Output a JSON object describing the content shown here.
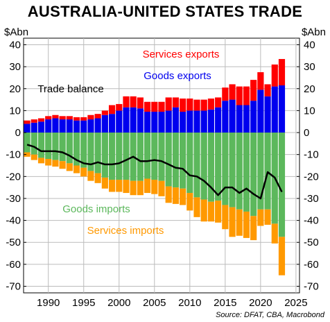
{
  "title": "AUSTRALIA-UNITED STATES TRADE",
  "unit_left": "$Abn",
  "unit_right": "$Abn",
  "source": "Source: DFAT, CBA, Macrobond",
  "colors": {
    "services_exports": "#ff0000",
    "goods_exports": "#0000ee",
    "goods_imports": "#5cb85c",
    "services_imports": "#ff9900",
    "trade_balance": "#000000",
    "grid": "#bbbbbb"
  },
  "chart_data": {
    "type": "bar",
    "stacked": true,
    "x": [
      1987,
      1988,
      1989,
      1990,
      1991,
      1992,
      1993,
      1994,
      1995,
      1996,
      1997,
      1998,
      1999,
      2000,
      2001,
      2002,
      2003,
      2004,
      2005,
      2006,
      2007,
      2008,
      2009,
      2010,
      2011,
      2012,
      2013,
      2014,
      2015,
      2016,
      2017,
      2018,
      2019,
      2020,
      2021,
      2022,
      2023
    ],
    "xticks": [
      1990,
      1995,
      2000,
      2005,
      2010,
      2015,
      2020,
      2025
    ],
    "xlim": [
      1986.5,
      2025.5
    ],
    "ylim": [
      -73,
      43
    ],
    "yticks": [
      40,
      30,
      20,
      10,
      0,
      -10,
      -20,
      -30,
      -40,
      -50,
      -60,
      -70
    ],
    "grid": true,
    "series": [
      {
        "name": "Goods exports",
        "values": [
          4,
          4.5,
          5,
          6,
          6.5,
          6,
          6,
          5.5,
          5.5,
          6,
          6.5,
          8,
          8.5,
          10,
          11.5,
          11.5,
          11,
          9.5,
          9.5,
          9.5,
          10,
          11.5,
          9.5,
          10,
          10,
          10,
          10.5,
          11.5,
          14.5,
          15,
          12.5,
          12.5,
          14.5,
          19.5,
          16.5,
          21,
          21.5
        ]
      },
      {
        "name": "Services exports",
        "values": [
          1.5,
          1.5,
          1.5,
          1.5,
          1.5,
          1.5,
          1.5,
          1.5,
          1.5,
          2,
          2,
          2,
          4,
          3,
          5,
          5,
          5,
          4.5,
          4.5,
          4.5,
          6,
          4.5,
          6,
          5.5,
          5,
          5,
          5,
          4.5,
          6,
          7,
          8.5,
          8.5,
          9.5,
          8,
          5.5,
          10,
          12
        ]
      },
      {
        "name": "Goods imports",
        "values": [
          -9,
          -10,
          -11.5,
          -12,
          -12.5,
          -13,
          -14,
          -15,
          -16,
          -17.5,
          -18.5,
          -20.5,
          -21.5,
          -21.5,
          -21.5,
          -22,
          -22,
          -21,
          -21.5,
          -22,
          -24.5,
          -25,
          -25.5,
          -27.5,
          -29.5,
          -30.5,
          -31.5,
          -31,
          -33,
          -34,
          -35,
          -36,
          -38,
          -35,
          -35,
          -41.5,
          -47.5
        ]
      },
      {
        "name": "Services imports",
        "values": [
          -2,
          -2.5,
          -2.5,
          -3,
          -3,
          -3.5,
          -3.5,
          -3.5,
          -4,
          -4.5,
          -4.5,
          -5,
          -5.5,
          -5.5,
          -6,
          -6.5,
          -6.5,
          -6.5,
          -6.5,
          -7,
          -7.5,
          -7.5,
          -7.5,
          -8,
          -9,
          -10,
          -9,
          -10,
          -11,
          -13.5,
          -12,
          -12,
          -11,
          -7.5,
          -7,
          -9,
          -17.5
        ]
      },
      {
        "name": "Trade balance",
        "type": "line",
        "values": [
          -5.5,
          -6.5,
          -8.5,
          -8.5,
          -8.5,
          -9,
          -10.5,
          -12.5,
          -14,
          -14.5,
          -13.5,
          -14.5,
          -14.5,
          -14,
          -12.5,
          -11,
          -13,
          -13,
          -12.5,
          -13,
          -14.5,
          -16,
          -16.5,
          -19.5,
          -20,
          -22,
          -25,
          -28.5,
          -25,
          -25,
          -27.5,
          -25.5,
          -28,
          -30,
          -18,
          -20.5,
          -27
        ]
      }
    ],
    "annotations": [
      {
        "text": "Services exports",
        "series": "Services exports"
      },
      {
        "text": "Goods exports",
        "series": "Goods exports"
      },
      {
        "text": "Trade balance",
        "series": "Trade balance"
      },
      {
        "text": "Goods imports",
        "series": "Goods imports"
      },
      {
        "text": "Services imports",
        "series": "Services imports"
      }
    ]
  }
}
